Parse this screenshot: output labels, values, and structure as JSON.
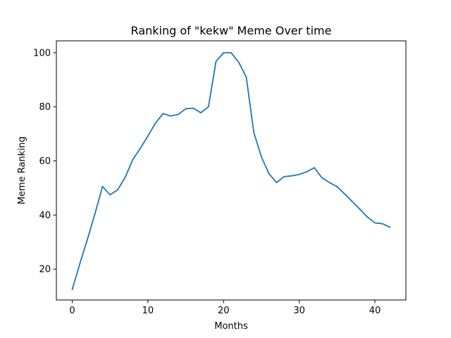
{
  "colors": {
    "background": "#ffffff",
    "series_line": "#1f77b4",
    "axes": "#000000"
  },
  "chart_data": {
    "type": "line",
    "title": "Ranking of \"kekw\" Meme Over time",
    "xlabel": "Months",
    "ylabel": "Meme Ranking",
    "xlim": [
      -2.1,
      44.1
    ],
    "ylim": [
      8.6,
      104.4
    ],
    "xticks": [
      0,
      10,
      20,
      30,
      40
    ],
    "yticks": [
      20,
      40,
      60,
      80,
      100
    ],
    "grid": false,
    "legend": "none",
    "series": [
      {
        "color": "#1f77b4",
        "x": [
          0,
          1,
          2,
          3,
          4,
          5,
          6,
          7,
          8,
          9,
          10,
          11,
          12,
          13,
          14,
          15,
          16,
          17,
          18,
          19,
          20,
          21,
          22,
          23,
          24,
          25,
          26,
          27,
          28,
          29,
          30,
          31,
          32,
          33,
          34,
          35,
          36,
          37,
          38,
          39,
          40,
          41,
          42
        ],
        "y": [
          12.5,
          22,
          31,
          40.5,
          50.5,
          47.5,
          49.3,
          54,
          60.5,
          64.7,
          69.2,
          74,
          77.5,
          76.6,
          77.2,
          79.3,
          79.5,
          77.8,
          80,
          96.8,
          100,
          100,
          96.5,
          91,
          70.5,
          61.5,
          55.3,
          52,
          54.2,
          54.5,
          55,
          56,
          57.5,
          53.8,
          52,
          50.5,
          47.8,
          45,
          42.2,
          39.3,
          37.1,
          36.8,
          35.5
        ]
      }
    ]
  }
}
